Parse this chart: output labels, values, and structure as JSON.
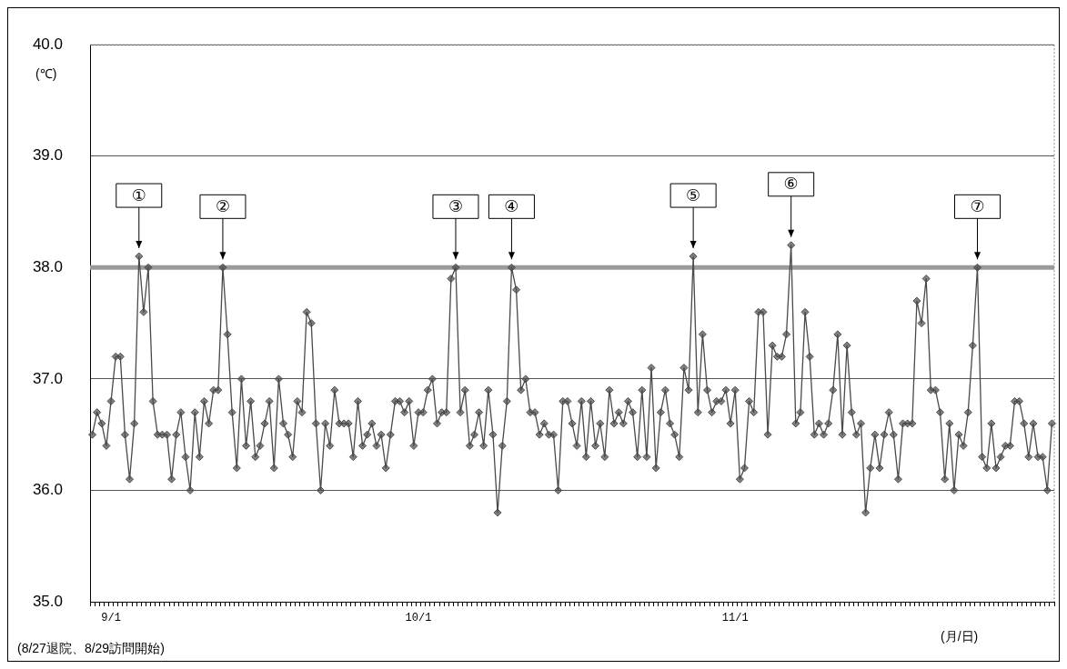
{
  "chart_data": {
    "type": "line",
    "ylabel": "(℃)",
    "xlabel": "(月/日)",
    "categories": [
      null,
      null,
      null,
      null,
      "9/1",
      null,
      null,
      null,
      null,
      null,
      null,
      null,
      null,
      null,
      null,
      null,
      null,
      null,
      null,
      null,
      null,
      null,
      null,
      null,
      null,
      null,
      null,
      null,
      null,
      null,
      null,
      null,
      null,
      null,
      null,
      null,
      null,
      null,
      null,
      null,
      null,
      null,
      null,
      null,
      null,
      null,
      null,
      null,
      null,
      null,
      null,
      null,
      null,
      null,
      null,
      null,
      null,
      null,
      null,
      null,
      null,
      null,
      null,
      null,
      null,
      null,
      null,
      null,
      null,
      null,
      "10/1",
      null,
      null,
      null,
      null,
      null,
      null,
      null,
      null,
      null,
      null,
      null,
      null,
      null,
      null,
      null,
      null,
      null,
      null,
      null,
      null,
      null,
      null,
      null,
      null,
      null,
      null,
      null,
      null,
      null,
      null,
      null,
      null,
      null,
      null,
      null,
      null,
      null,
      null,
      null,
      null,
      null,
      null,
      null,
      null,
      null,
      null,
      null,
      null,
      null,
      null,
      null,
      null,
      null,
      null,
      null,
      null,
      null,
      null,
      null,
      null,
      null,
      null,
      null,
      null,
      null,
      null,
      null,
      "11/1",
      null,
      null,
      null,
      null,
      null,
      null,
      null,
      null,
      null,
      null,
      null,
      null,
      null,
      null,
      null,
      null,
      null,
      null,
      null,
      null,
      null,
      null,
      null,
      null,
      null,
      null,
      null,
      null,
      null,
      null,
      null,
      null,
      null,
      null,
      null,
      null,
      null,
      null,
      null,
      null,
      null,
      null,
      null,
      null,
      null,
      null,
      null,
      null,
      null,
      null,
      null,
      null,
      null,
      null,
      null,
      null,
      null,
      null,
      null,
      null,
      null,
      null,
      null,
      null,
      null,
      null,
      null,
      null
    ],
    "series": [
      {
        "color": "#4a4a4a",
        "values": [
          36.5,
          36.7,
          36.6,
          36.4,
          36.8,
          37.2,
          37.2,
          36.5,
          36.1,
          36.6,
          38.1,
          37.6,
          38.0,
          36.8,
          36.5,
          36.5,
          36.5,
          36.1,
          36.5,
          36.7,
          36.3,
          36.0,
          36.7,
          36.3,
          36.8,
          36.6,
          36.9,
          36.9,
          38.0,
          37.4,
          36.7,
          36.2,
          37.0,
          36.4,
          36.8,
          36.3,
          36.4,
          36.6,
          36.8,
          36.2,
          37.0,
          36.6,
          36.5,
          36.3,
          36.8,
          36.7,
          37.6,
          37.5,
          36.6,
          36.0,
          36.6,
          36.4,
          36.9,
          36.6,
          36.6,
          36.6,
          36.3,
          36.8,
          36.4,
          36.5,
          36.6,
          36.4,
          36.5,
          36.2,
          36.5,
          36.8,
          36.8,
          36.7,
          36.8,
          36.4,
          36.7,
          36.7,
          36.9,
          37.0,
          36.6,
          36.7,
          36.7,
          37.9,
          38.0,
          36.7,
          36.9,
          36.4,
          36.5,
          36.7,
          36.4,
          36.9,
          36.5,
          35.8,
          36.4,
          36.8,
          38.0,
          37.8,
          36.9,
          37.0,
          36.7,
          36.7,
          36.5,
          36.6,
          36.5,
          36.5,
          36.0,
          36.8,
          36.8,
          36.6,
          36.4,
          36.8,
          36.3,
          36.8,
          36.4,
          36.6,
          36.3,
          36.9,
          36.6,
          36.7,
          36.6,
          36.8,
          36.7,
          36.3,
          36.9,
          36.3,
          37.1,
          36.2,
          36.7,
          36.9,
          36.6,
          36.5,
          36.3,
          37.1,
          36.9,
          38.1,
          36.7,
          37.4,
          36.9,
          36.7,
          36.8,
          36.8,
          36.9,
          36.6,
          36.9,
          36.1,
          36.2,
          36.8,
          36.7,
          37.6,
          37.6,
          36.5,
          37.3,
          37.2,
          37.2,
          37.4,
          38.2,
          36.6,
          36.7,
          37.6,
          37.2,
          36.5,
          36.6,
          36.5,
          36.6,
          36.9,
          37.4,
          36.5,
          37.3,
          36.7,
          36.5,
          36.6,
          35.8,
          36.2,
          36.5,
          36.2,
          36.5,
          36.7,
          36.5,
          36.1,
          36.6,
          36.6,
          36.6,
          37.7,
          37.5,
          37.9,
          36.9,
          36.9,
          36.7,
          36.1,
          36.6,
          36.0,
          36.5,
          36.4,
          36.7,
          37.3,
          38.0,
          36.3,
          36.2,
          36.6,
          36.2,
          36.3,
          36.4,
          36.4,
          36.8,
          36.8,
          36.6,
          36.3,
          36.6,
          36.3,
          36.3,
          36.0,
          36.6
        ],
        "value_labels": [
          null,
          null,
          null,
          null,
          null,
          null,
          null,
          null,
          null,
          null,
          "①",
          null,
          null,
          null,
          null,
          null,
          null,
          null,
          null,
          null,
          null,
          null,
          null,
          null,
          null,
          null,
          null,
          null,
          "②",
          null,
          null,
          null,
          null,
          null,
          null,
          null,
          null,
          null,
          null,
          null,
          null,
          null,
          null,
          null,
          null,
          null,
          null,
          null,
          null,
          null,
          null,
          null,
          null,
          null,
          null,
          null,
          null,
          null,
          null,
          null,
          null,
          null,
          null,
          null,
          null,
          null,
          null,
          null,
          null,
          null,
          null,
          null,
          null,
          null,
          null,
          null,
          null,
          null,
          "③",
          null,
          null,
          null,
          null,
          null,
          null,
          null,
          null,
          null,
          null,
          null,
          "④",
          null,
          null,
          null,
          null,
          null,
          null,
          null,
          null,
          null,
          null,
          null,
          null,
          null,
          null,
          null,
          null,
          null,
          null,
          null,
          null,
          null,
          null,
          null,
          null,
          null,
          null,
          null,
          null,
          null,
          null,
          null,
          null,
          null,
          null,
          null,
          null,
          null,
          null,
          "⑤",
          null,
          null,
          null,
          null,
          null,
          null,
          null,
          null,
          null,
          null,
          null,
          null,
          null,
          null,
          null,
          null,
          null,
          null,
          null,
          null,
          "⑥",
          null,
          null,
          null,
          null,
          null,
          null,
          null,
          null,
          null,
          null,
          null,
          null,
          null,
          null,
          null,
          null,
          null,
          null,
          null,
          null,
          null,
          null,
          null,
          null,
          null,
          null,
          null,
          null,
          null,
          null,
          null,
          null,
          null,
          null,
          null,
          null,
          null,
          null,
          null,
          "⑦",
          null,
          null,
          null,
          null,
          null,
          null,
          null,
          null,
          null,
          null,
          null,
          null,
          null,
          null,
          null,
          null
        ]
      }
    ],
    "ylim": [
      35,
      40
    ],
    "yticks": [
      {
        "value": 35,
        "label": "35.0"
      },
      {
        "value": 36,
        "label": "36.0"
      },
      {
        "value": 37,
        "label": "37.0"
      },
      {
        "value": 38,
        "label": "38.0"
      },
      {
        "value": 39,
        "label": "39.0"
      },
      {
        "value": 40,
        "label": "40.0"
      }
    ],
    "grid": "y",
    "marker": "diamond",
    "line_style": "solid",
    "ref_lines": [
      {
        "axis": "y",
        "value": 38,
        "color": "#9a9a9a"
      }
    ],
    "annotations": [
      "(8/27退院、8/29訪問開始)"
    ]
  }
}
